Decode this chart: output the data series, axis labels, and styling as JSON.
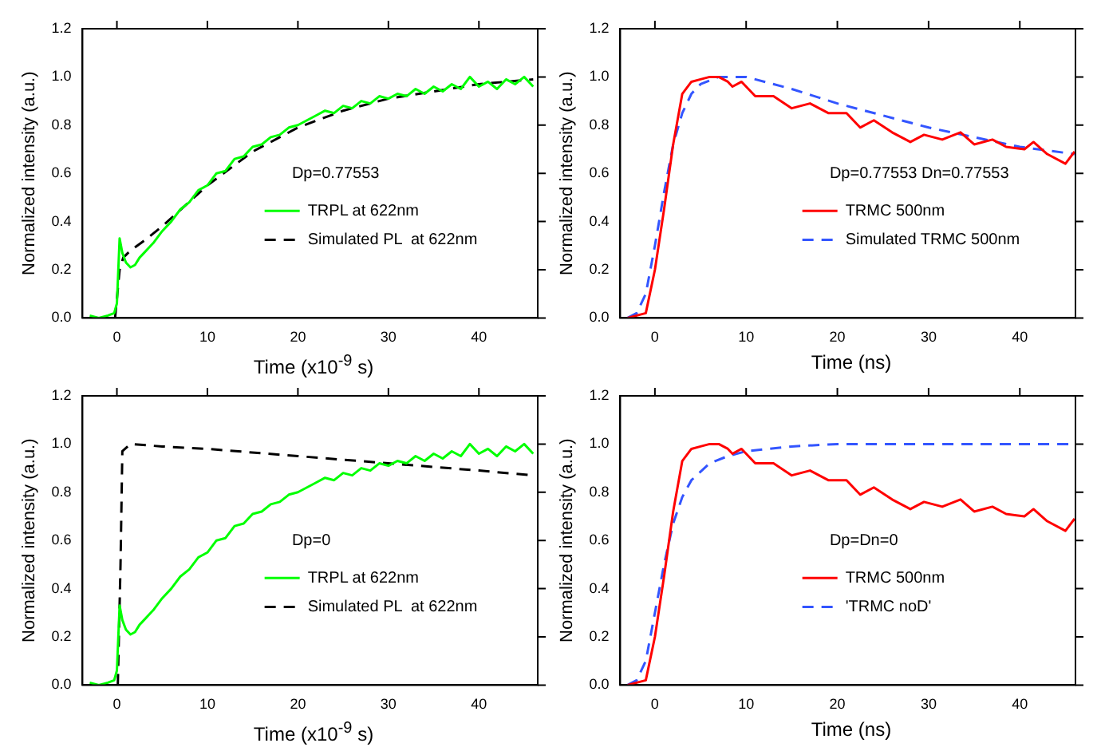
{
  "chart_data": [
    {
      "type": "line",
      "xlabel": "Time (x10$^{-9}$ s)",
      "ylabel": "Normalized intensity (a.u.)",
      "xlim": [
        -3.8,
        46.5
      ],
      "ylim": [
        0,
        1.2
      ],
      "xticks": [
        0,
        10,
        20,
        30,
        40
      ],
      "yticks": [
        {
          "value": 0,
          "label": "0.0"
        },
        {
          "value": 0.2,
          "label": "0.2"
        },
        {
          "value": 0.4,
          "label": "0.4"
        },
        {
          "value": 0.6,
          "label": "0.6"
        },
        {
          "value": 0.8,
          "label": "0.8"
        },
        {
          "value": 1,
          "label": "1.0"
        },
        {
          "value": 1.2,
          "label": "1.2"
        }
      ],
      "grid": false,
      "legend": "right",
      "marker": "none",
      "annotations": [
        "Dp=0.77553"
      ],
      "series": [
        {
          "name": "TRPL at 622nm",
          "color": "#00ff00",
          "line_style": "solid",
          "x": [
            -3,
            -2,
            -1,
            -0.3,
            0,
            0.3,
            0.6,
            1,
            1.5,
            2,
            2.5,
            3,
            3.5,
            4,
            5,
            6,
            7,
            8,
            9,
            10,
            11,
            12,
            13,
            14,
            15,
            16,
            17,
            18,
            19,
            20,
            21,
            22,
            23,
            24,
            25,
            26,
            27,
            28,
            29,
            30,
            31,
            32,
            33,
            34,
            35,
            36,
            37,
            38,
            39,
            40,
            41,
            42,
            43,
            44,
            45,
            46
          ],
          "values": [
            0.01,
            0.0,
            0.01,
            0.02,
            0.06,
            0.33,
            0.27,
            0.23,
            0.21,
            0.22,
            0.25,
            0.27,
            0.29,
            0.31,
            0.36,
            0.4,
            0.45,
            0.48,
            0.53,
            0.55,
            0.6,
            0.61,
            0.66,
            0.67,
            0.71,
            0.72,
            0.75,
            0.76,
            0.79,
            0.8,
            0.82,
            0.84,
            0.86,
            0.85,
            0.88,
            0.87,
            0.9,
            0.89,
            0.92,
            0.91,
            0.93,
            0.92,
            0.95,
            0.93,
            0.96,
            0.94,
            0.97,
            0.95,
            1.0,
            0.96,
            0.98,
            0.95,
            0.99,
            0.97,
            1.0,
            0.96
          ]
        },
        {
          "name": "Simulated PL  at 622nm",
          "color": "#000000",
          "line_style": "dashed",
          "x": [
            -0.2,
            0.3,
            0.7,
            1.5,
            3,
            5,
            10,
            15,
            20,
            25,
            30,
            35,
            40,
            46
          ],
          "values": [
            0,
            0.2,
            0.25,
            0.28,
            0.32,
            0.38,
            0.55,
            0.69,
            0.79,
            0.86,
            0.91,
            0.94,
            0.97,
            0.99
          ]
        }
      ]
    },
    {
      "type": "line",
      "xlabel": "Time (ns)",
      "ylabel": "Normalized intensity (a.u.)",
      "xlim": [
        -3.8,
        46.1
      ],
      "ylim": [
        0,
        1.2
      ],
      "xticks": [
        0,
        10,
        20,
        30,
        40
      ],
      "yticks": [
        {
          "value": 0,
          "label": "0.0"
        },
        {
          "value": 0.2,
          "label": "0.2"
        },
        {
          "value": 0.4,
          "label": "0.4"
        },
        {
          "value": 0.6,
          "label": "0.6"
        },
        {
          "value": 0.8,
          "label": "0.8"
        },
        {
          "value": 1,
          "label": "1.0"
        },
        {
          "value": 1.2,
          "label": "1.2"
        }
      ],
      "grid": false,
      "legend": "right",
      "marker": "none",
      "annotations": [
        "Dp=0.77553 Dn=0.77553"
      ],
      "series": [
        {
          "name": "TRMC 500nm",
          "color": "#ff0000",
          "line_style": "solid",
          "x": [
            -3,
            -2,
            -1,
            0,
            1,
            2,
            3,
            4,
            5,
            6,
            7,
            8,
            8.5,
            9.5,
            11,
            12,
            13,
            15,
            17,
            19,
            21,
            22.5,
            24,
            26,
            28,
            29.5,
            31.5,
            33.5,
            35,
            37,
            38.5,
            40.5,
            41.5,
            43,
            45,
            46
          ],
          "values": [
            0,
            0.01,
            0.02,
            0.2,
            0.45,
            0.72,
            0.93,
            0.98,
            0.99,
            1.0,
            1.0,
            0.98,
            0.96,
            0.98,
            0.92,
            0.92,
            0.92,
            0.87,
            0.89,
            0.85,
            0.85,
            0.79,
            0.82,
            0.77,
            0.73,
            0.76,
            0.74,
            0.77,
            0.72,
            0.74,
            0.71,
            0.7,
            0.73,
            0.68,
            0.64,
            0.69
          ]
        },
        {
          "name": "Simulated TRMC 500nm",
          "color": "#3355ff",
          "line_style": "dashed",
          "x": [
            -3,
            -2,
            -1,
            0,
            1,
            2,
            3,
            4,
            5,
            7,
            10,
            15,
            20,
            25,
            30,
            35,
            40,
            46
          ],
          "values": [
            0,
            0.02,
            0.1,
            0.3,
            0.52,
            0.72,
            0.85,
            0.93,
            0.97,
            1.0,
            1.0,
            0.95,
            0.89,
            0.84,
            0.79,
            0.75,
            0.71,
            0.68
          ]
        }
      ]
    },
    {
      "type": "line",
      "xlabel": "Time (x10$^{-9}$ s)",
      "ylabel": "Normalized intensity (a.u.)",
      "xlim": [
        -3.8,
        46.5
      ],
      "ylim": [
        0,
        1.2
      ],
      "xticks": [
        0,
        10,
        20,
        30,
        40
      ],
      "yticks": [
        {
          "value": 0,
          "label": "0.0"
        },
        {
          "value": 0.2,
          "label": "0.2"
        },
        {
          "value": 0.4,
          "label": "0.4"
        },
        {
          "value": 0.6,
          "label": "0.6"
        },
        {
          "value": 0.8,
          "label": "0.8"
        },
        {
          "value": 1,
          "label": "1.0"
        },
        {
          "value": 1.2,
          "label": "1.2"
        }
      ],
      "grid": false,
      "legend": "right",
      "marker": "none",
      "annotations": [
        "Dp=0"
      ],
      "series": [
        {
          "name": "TRPL at 622nm",
          "color": "#00ff00",
          "line_style": "solid",
          "x": [
            -3,
            -2,
            -1,
            -0.3,
            0,
            0.3,
            0.6,
            1,
            1.5,
            2,
            2.5,
            3,
            3.5,
            4,
            5,
            6,
            7,
            8,
            9,
            10,
            11,
            12,
            13,
            14,
            15,
            16,
            17,
            18,
            19,
            20,
            21,
            22,
            23,
            24,
            25,
            26,
            27,
            28,
            29,
            30,
            31,
            32,
            33,
            34,
            35,
            36,
            37,
            38,
            39,
            40,
            41,
            42,
            43,
            44,
            45,
            46
          ],
          "values": [
            0.01,
            0.0,
            0.01,
            0.02,
            0.06,
            0.33,
            0.27,
            0.23,
            0.21,
            0.22,
            0.25,
            0.27,
            0.29,
            0.31,
            0.36,
            0.4,
            0.45,
            0.48,
            0.53,
            0.55,
            0.6,
            0.61,
            0.66,
            0.67,
            0.71,
            0.72,
            0.75,
            0.76,
            0.79,
            0.8,
            0.82,
            0.84,
            0.86,
            0.85,
            0.88,
            0.87,
            0.9,
            0.89,
            0.92,
            0.91,
            0.93,
            0.92,
            0.95,
            0.93,
            0.96,
            0.94,
            0.97,
            0.95,
            1.0,
            0.96,
            0.98,
            0.95,
            0.99,
            0.97,
            1.0,
            0.96
          ]
        },
        {
          "name": "Simulated PL  at 622nm",
          "color": "#000000",
          "line_style": "dashed",
          "x": [
            0.1,
            0.4,
            0.6,
            1.5,
            5,
            10,
            20,
            30,
            40,
            46
          ],
          "values": [
            0,
            0.5,
            0.97,
            1.0,
            0.99,
            0.98,
            0.95,
            0.92,
            0.89,
            0.87
          ]
        }
      ]
    },
    {
      "type": "line",
      "xlabel": "Time (ns)",
      "ylabel": "Normalized intensity (a.u.)",
      "xlim": [
        -3.8,
        46.1
      ],
      "ylim": [
        0,
        1.2
      ],
      "xticks": [
        0,
        10,
        20,
        30,
        40
      ],
      "yticks": [
        {
          "value": 0,
          "label": "0.0"
        },
        {
          "value": 0.2,
          "label": "0.2"
        },
        {
          "value": 0.4,
          "label": "0.4"
        },
        {
          "value": 0.6,
          "label": "0.6"
        },
        {
          "value": 0.8,
          "label": "0.8"
        },
        {
          "value": 1,
          "label": "1.0"
        },
        {
          "value": 1.2,
          "label": "1.2"
        }
      ],
      "grid": false,
      "legend": "right",
      "marker": "none",
      "annotations": [
        "Dp=Dn=0"
      ],
      "series": [
        {
          "name": "TRMC 500nm",
          "color": "#ff0000",
          "line_style": "solid",
          "x": [
            -3,
            -2,
            -1,
            0,
            1,
            2,
            3,
            4,
            5,
            6,
            7,
            8,
            8.5,
            9.5,
            11,
            12,
            13,
            15,
            17,
            19,
            21,
            22.5,
            24,
            26,
            28,
            29.5,
            31.5,
            33.5,
            35,
            37,
            38.5,
            40.5,
            41.5,
            43,
            45,
            46
          ],
          "values": [
            0,
            0.01,
            0.02,
            0.2,
            0.45,
            0.72,
            0.93,
            0.98,
            0.99,
            1.0,
            1.0,
            0.98,
            0.96,
            0.98,
            0.92,
            0.92,
            0.92,
            0.87,
            0.89,
            0.85,
            0.85,
            0.79,
            0.82,
            0.77,
            0.73,
            0.76,
            0.74,
            0.77,
            0.72,
            0.74,
            0.71,
            0.7,
            0.73,
            0.68,
            0.64,
            0.69
          ]
        },
        {
          "name": "'TRMC noD'",
          "color": "#3355ff",
          "line_style": "dashed",
          "x": [
            -3,
            -2,
            -1,
            0,
            1,
            2,
            3,
            4,
            6,
            8,
            10,
            15,
            20,
            46
          ],
          "values": [
            0,
            0.02,
            0.1,
            0.3,
            0.5,
            0.67,
            0.78,
            0.85,
            0.92,
            0.95,
            0.97,
            0.99,
            1.0,
            1.0
          ]
        }
      ]
    }
  ]
}
